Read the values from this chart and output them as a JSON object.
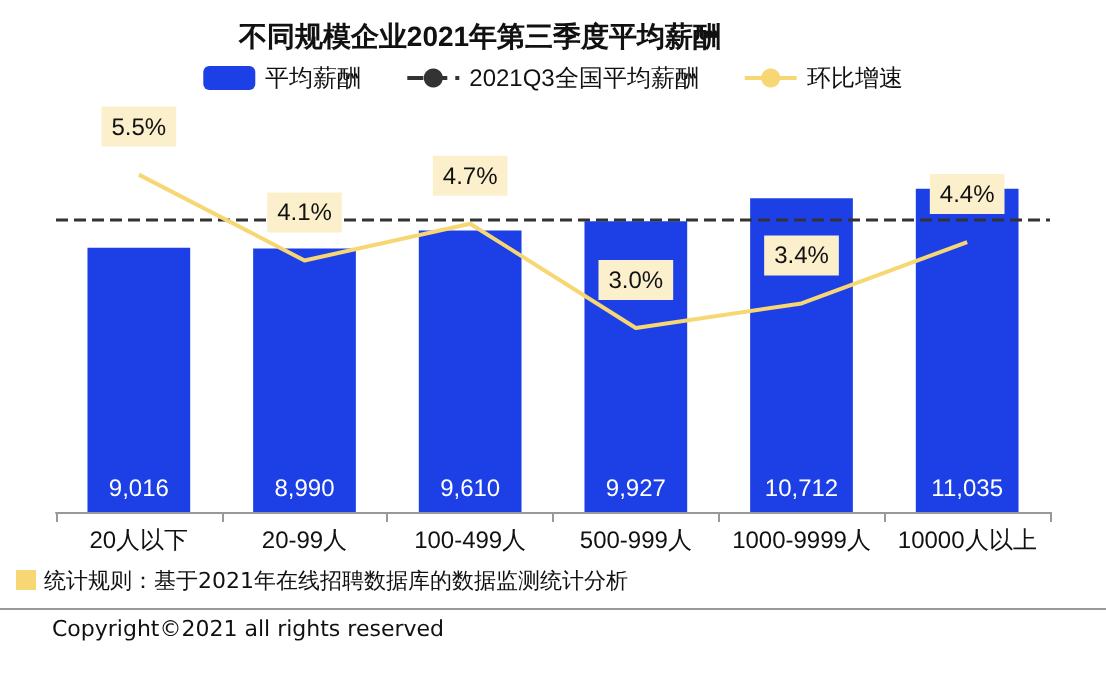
{
  "chart_data": {
    "type": "bar",
    "title": "不同规模企业2021年第三季度平均薪酬",
    "categories": [
      "20人以下",
      "20-99人",
      "100-499人",
      "500-999人",
      "1000-9999人",
      "10000人以上"
    ],
    "series": [
      {
        "name": "平均薪酬",
        "color": "#1c3fe6",
        "values": [
          9016,
          8990,
          9610,
          9927,
          10712,
          11035
        ],
        "value_labels": [
          "9,016",
          "8,990",
          "9,610",
          "9,927",
          "10,712",
          "11,035"
        ]
      },
      {
        "name": "环比增速",
        "type": "line",
        "axis": "y2",
        "color": "#f7d774",
        "values": [
          5.5,
          4.1,
          4.7,
          3.0,
          3.4,
          4.4
        ],
        "value_labels": [
          "5.5%",
          "4.1%",
          "4.7%",
          "3.0%",
          "3.4%",
          "4.4%"
        ]
      }
    ],
    "ref_lines": [
      {
        "axis": "y",
        "value": 9990,
        "label": "2021Q3全国平均薪酬",
        "color": "#333333",
        "line_style": "dashed"
      }
    ],
    "legend": "top",
    "grid": false,
    "annotations": [
      "统计规则：基于2021年在线招聘数据库的数据监测统计分析",
      "Copyright©2021 all rights reserved"
    ]
  }
}
